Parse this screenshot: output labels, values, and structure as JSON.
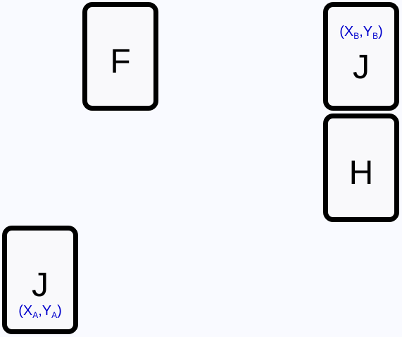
{
  "background_color": "#f9faff",
  "accent_color": "#0000cc",
  "cards": {
    "f": {
      "letter": "F"
    },
    "jb": {
      "letter": "J",
      "coord": {
        "open": "(X",
        "sub1": "B",
        "sep": ",Y",
        "sub2": "B",
        "close": ")"
      }
    },
    "h": {
      "letter": "H"
    },
    "ja": {
      "letter": "J",
      "coord": {
        "open": "(X",
        "sub1": "A",
        "sep": ",Y",
        "sub2": "A",
        "close": ")"
      }
    }
  }
}
